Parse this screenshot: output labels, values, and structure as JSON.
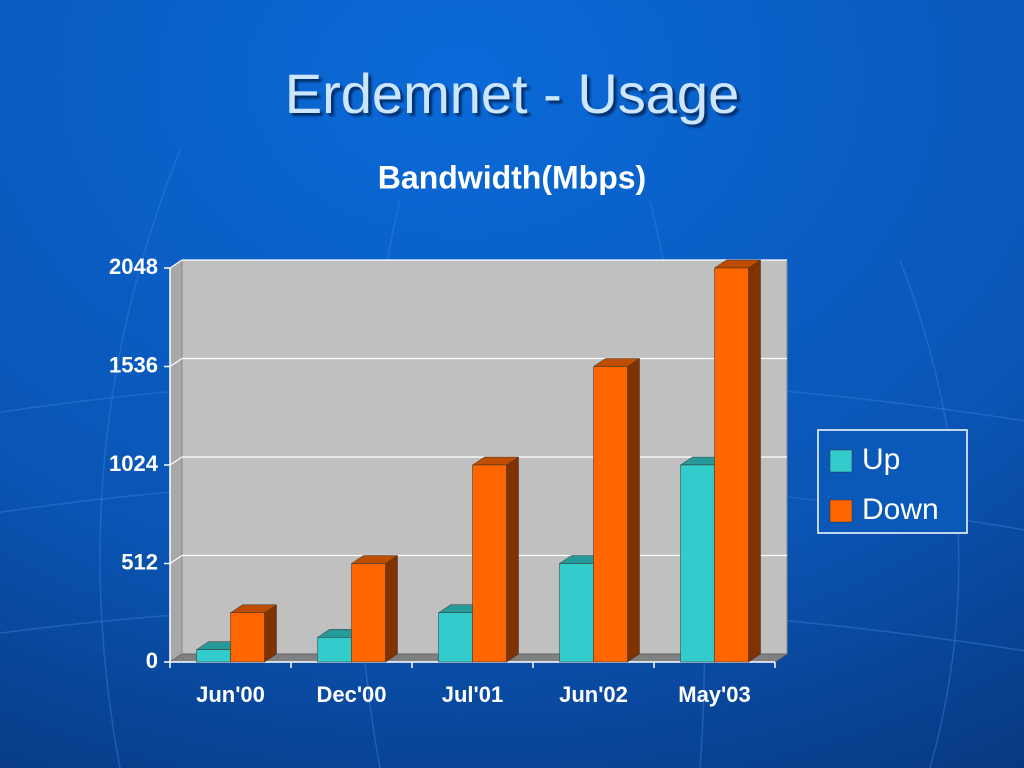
{
  "chart_data": {
    "type": "bar3d",
    "title": "Erdemnet - Usage",
    "subtitle": "Bandwidth(Mbps)",
    "categories": [
      "Jun'00",
      "Dec'00",
      "Jul'01",
      "Jun'02",
      "May'03"
    ],
    "series": [
      {
        "name": "Up",
        "color": "#33cccc",
        "values": [
          64,
          128,
          256,
          512,
          1024
        ]
      },
      {
        "name": "Down",
        "color": "#ff6600",
        "values": [
          256,
          512,
          1024,
          1536,
          2048
        ]
      }
    ],
    "ylim": [
      0,
      2048
    ],
    "yticks": [
      0,
      512,
      1024,
      1536,
      2048
    ],
    "grid": true,
    "legend": "right"
  }
}
